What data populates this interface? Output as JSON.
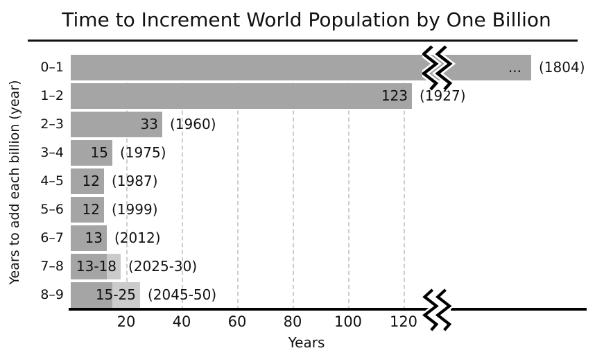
{
  "title": "Time to Increment World Population by One Billion",
  "chart_data": {
    "type": "bar",
    "orientation": "horizontal",
    "title": "Time to Increment World Population by One Billion",
    "xlabel": "Years",
    "ylabel": "Years to add each billion (year)",
    "xticks": [
      20,
      40,
      60,
      80,
      100,
      120
    ],
    "xlim": [
      0,
      130
    ],
    "grid": "vertical-dashed",
    "axis_break": {
      "present": true,
      "after_years": 130,
      "note": "zigzag break on x-axis and on the 0–1 bar"
    },
    "categories": [
      "0–1",
      "1–2",
      "2–3",
      "3–4",
      "4–5",
      "5–6",
      "6–7",
      "7–8",
      "8–9"
    ],
    "rows": [
      {
        "category": "0–1",
        "value": null,
        "value_label": "...",
        "year_label": "(1804)",
        "broken": true,
        "display_years": 166
      },
      {
        "category": "1–2",
        "value": 123,
        "value_label": "123",
        "year_label": "(1927)"
      },
      {
        "category": "2–3",
        "value": 33,
        "value_label": "33",
        "year_label": "(1960)"
      },
      {
        "category": "3–4",
        "value": 15,
        "value_label": "15",
        "year_label": "(1975)"
      },
      {
        "category": "4–5",
        "value": 12,
        "value_label": "12",
        "year_label": "(1987)"
      },
      {
        "category": "5–6",
        "value": 12,
        "value_label": "12",
        "year_label": "(1999)"
      },
      {
        "category": "6–7",
        "value": 13,
        "value_label": "13",
        "year_label": "(2012)"
      },
      {
        "category": "7–8",
        "value": 13,
        "value_max": 18,
        "value_label": "13-18",
        "year_label": "(2025-30)"
      },
      {
        "category": "8–9",
        "value": 15,
        "value_max": 25,
        "value_label": "15-25",
        "year_label": "(2045-50)"
      }
    ],
    "colors": {
      "bar": "#a5a5a5",
      "bar_range_light": "#cbcbcb",
      "gridline": "#cdcdcd",
      "axis": "#000000",
      "text": "#111111"
    }
  }
}
